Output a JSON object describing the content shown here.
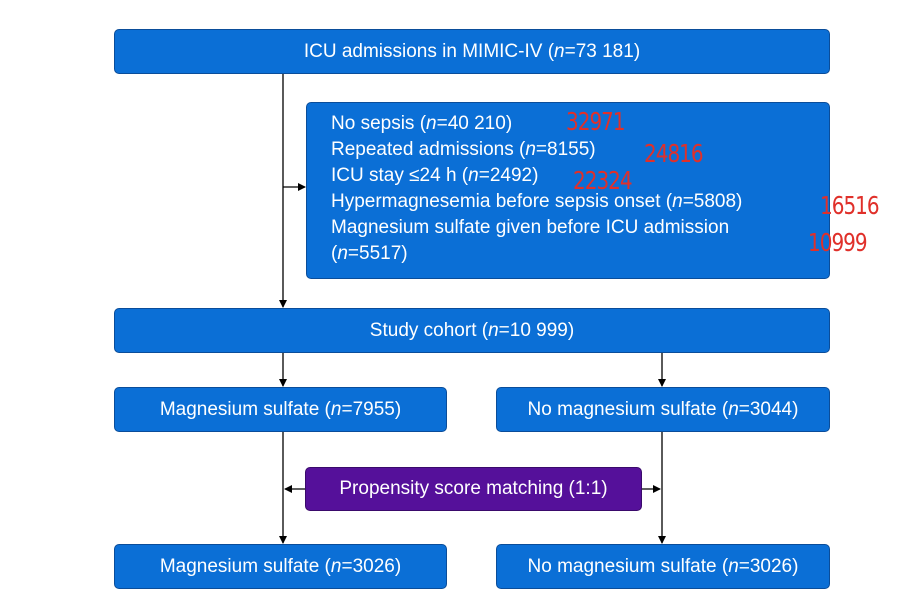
{
  "top_box": {
    "prefix": "ICU admissions in MIMIC-IV (",
    "n": "n",
    "suffix": "=73 181)"
  },
  "exclusions": [
    {
      "prefix": "No sepsis (",
      "n": "n",
      "suffix": "=40 210)"
    },
    {
      "prefix": "Repeated admissions (",
      "n": "n",
      "suffix": "=8155)"
    },
    {
      "prefix": "ICU stay ≤24 h (",
      "n": "n",
      "suffix": "=2492)"
    },
    {
      "prefix": "Hypermagnesemia before sepsis onset (",
      "n": "n",
      "suffix": "=5808)"
    },
    {
      "prefix": "Magnesium sulfate given before ICU admission",
      "n": "",
      "suffix": ""
    },
    {
      "prefix": "(",
      "n": "n",
      "suffix": "=5517)"
    }
  ],
  "cohort_box": {
    "prefix": "Study cohort (",
    "n": "n",
    "suffix": "=10 999)"
  },
  "groups": {
    "left": {
      "prefix": "Magnesium sulfate (",
      "n": "n",
      "suffix": "=7955)"
    },
    "right": {
      "prefix": "No magnesium sulfate (",
      "n": "n",
      "suffix": "=3044)"
    }
  },
  "psm_box": {
    "label": "Propensity score matching (1:1)"
  },
  "matched": {
    "left": {
      "prefix": "Magnesium sulfate (",
      "n": "n",
      "suffix": "=3026)"
    },
    "right": {
      "prefix": "No magnesium sulfate (",
      "n": "n",
      "suffix": "=3026)"
    }
  },
  "annotations": [
    "32971",
    "24816",
    "22324",
    "16516",
    "10999"
  ],
  "colors": {
    "box": "#0b6fd6",
    "psm": "#55109a",
    "annotation": "#e0302a",
    "line": "#000000"
  }
}
